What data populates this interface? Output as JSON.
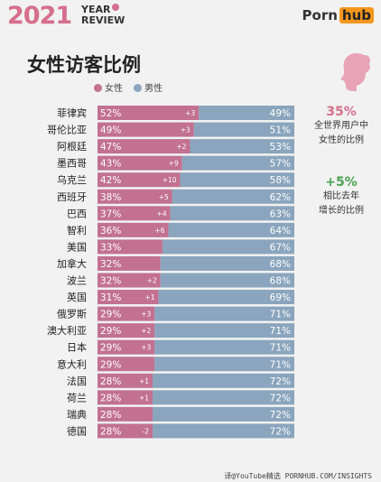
{
  "header": {
    "year": "2021",
    "year_review": [
      "YEAR",
      "REVIEW"
    ],
    "brand_porn": "Porn",
    "brand_hub": "hub"
  },
  "title": "女性访客比例",
  "legend": {
    "female": "女性",
    "male": "男性"
  },
  "colors": {
    "female": "#c27190",
    "male": "#8aa5bd",
    "accent": "#d66f8e",
    "green": "#4aa350"
  },
  "stats": [
    {
      "value": "35%",
      "line1": "全世界用户中",
      "line2": "女性的比例"
    },
    {
      "value": "+5%",
      "line1": "相比去年",
      "line2": "增长的比例"
    }
  ],
  "footer": "译@YouTube精选  PORNHUB.COM/INSIGHTS",
  "chart_data": {
    "type": "bar",
    "stacked": true,
    "orientation": "horizontal",
    "categories": [
      "菲律宾",
      "哥伦比亚",
      "阿根廷",
      "墨西哥",
      "乌克兰",
      "西班牙",
      "巴西",
      "智利",
      "美国",
      "加拿大",
      "波兰",
      "英国",
      "俄罗斯",
      "澳大利亚",
      "日本",
      "意大利",
      "法国",
      "荷兰",
      "瑞典",
      "德国"
    ],
    "series": [
      {
        "name": "女性",
        "values": [
          52,
          49,
          47,
          43,
          42,
          38,
          37,
          36,
          33,
          32,
          32,
          31,
          29,
          29,
          29,
          29,
          28,
          28,
          28,
          28
        ]
      },
      {
        "name": "男性",
        "values": [
          49,
          51,
          53,
          57,
          58,
          62,
          63,
          64,
          67,
          68,
          68,
          69,
          71,
          71,
          71,
          71,
          72,
          72,
          72,
          72
        ]
      }
    ],
    "female_change": [
      "+3",
      "+3",
      "+2",
      "+9",
      "+10",
      "+5",
      "+4",
      "+6",
      "",
      "",
      "+2",
      "+1",
      "+3",
      "+2",
      "+3",
      "",
      "+1",
      "+1",
      "",
      "-2"
    ],
    "xlim": [
      0,
      100
    ]
  }
}
